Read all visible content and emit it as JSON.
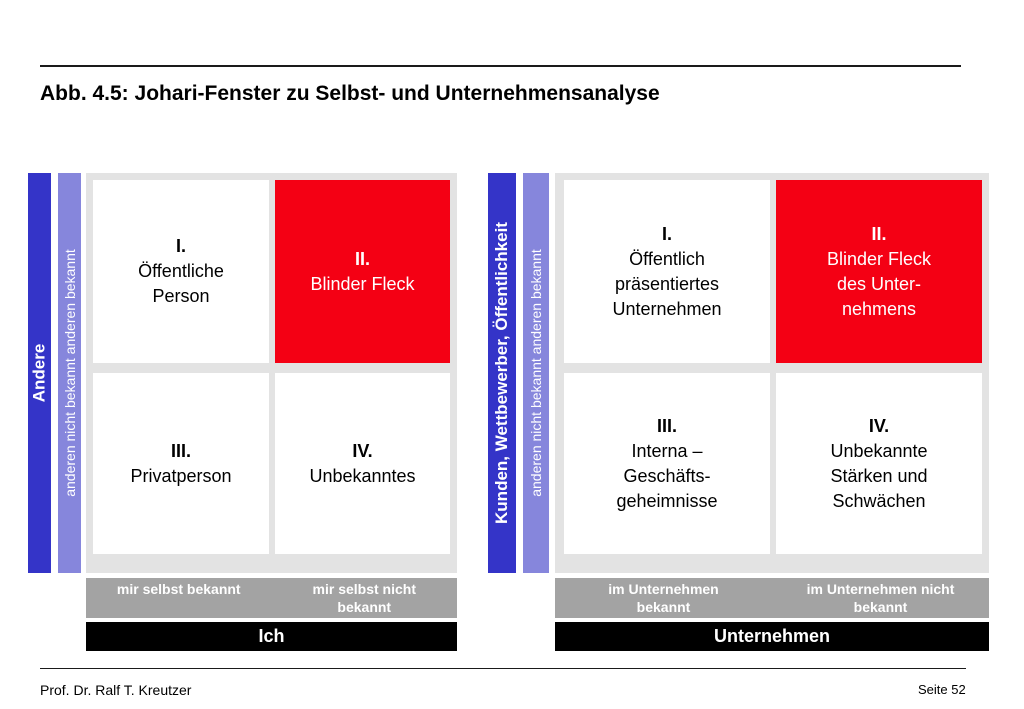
{
  "title": "Abb. 4.5: Johari-Fenster zu Selbst- und Unternehmensanalyse",
  "left": {
    "outer_label": "Andere",
    "inner_label": "anderen nicht bekannt anderen bekannt",
    "cells": {
      "q1": {
        "num": "I.",
        "line1": "Öffentliche",
        "line2": "Person"
      },
      "q2": {
        "num": "II.",
        "line1": "Blinder Fleck"
      },
      "q3": {
        "num": "III.",
        "line1": "Privatperson"
      },
      "q4": {
        "num": "IV.",
        "line1": "Unbekanntes"
      }
    },
    "col_left": "mir selbst bekannt",
    "col_right_1": "mir selbst nicht",
    "col_right_2": "bekannt",
    "bottom": "Ich"
  },
  "right": {
    "outer_label": "Kunden, Wettbewerber, Öffentlichkeit",
    "inner_label": "anderen nicht bekannt anderen bekannt",
    "cells": {
      "q1": {
        "num": "I.",
        "line1": "Öffentlich",
        "line2": "präsentiertes",
        "line3": "Unternehmen"
      },
      "q2": {
        "num": "II.",
        "line1": "Blinder Fleck",
        "line2": "des Unter-",
        "line3": "nehmens"
      },
      "q3": {
        "num": "III.",
        "line1": "Interna –",
        "line2": "Geschäfts-",
        "line3": "geheimnisse"
      },
      "q4": {
        "num": "IV.",
        "line1": "Unbekannte",
        "line2": "Stärken und",
        "line3": "Schwächen"
      }
    },
    "col_left_1": "im Unternehmen",
    "col_left_2": "bekannt",
    "col_right_1": "im Unternehmen nicht",
    "col_right_2": "bekannt",
    "bottom": "Unternehmen"
  },
  "footer": {
    "author": "Prof. Dr. Ralf T. Kreutzer",
    "page": "Seite 52"
  },
  "colors": {
    "bar_dark": "#3434c8",
    "bar_light": "#8686dc",
    "blind_spot": "#f40014",
    "grid_bg": "#e3e3e3",
    "label_bar": "#a3a3a3"
  }
}
